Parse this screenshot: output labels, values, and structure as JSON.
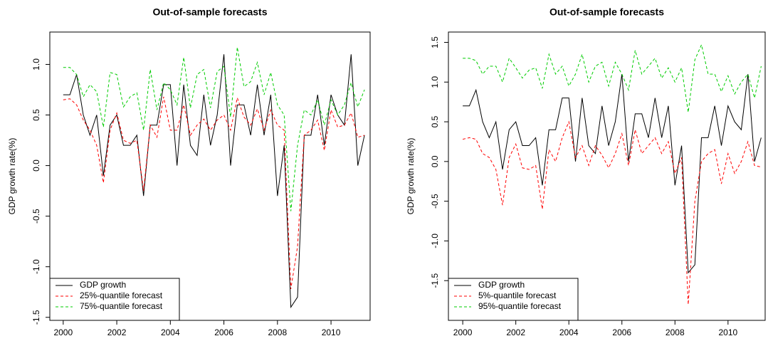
{
  "chart_data": [
    {
      "type": "line",
      "title": "Out-of-sample forecasts",
      "ylabel": "GDP growth rate(%)",
      "x": [
        2000,
        2000.25,
        2000.5,
        2000.75,
        2001,
        2001.25,
        2001.5,
        2001.75,
        2002,
        2002.25,
        2002.5,
        2002.75,
        2003,
        2003.25,
        2003.5,
        2003.75,
        2004,
        2004.25,
        2004.5,
        2004.75,
        2005,
        2005.25,
        2005.5,
        2005.75,
        2006,
        2006.25,
        2006.5,
        2006.75,
        2007,
        2007.25,
        2007.5,
        2007.75,
        2008,
        2008.25,
        2008.5,
        2008.75,
        2009,
        2009.25,
        2009.5,
        2009.75,
        2010,
        2010.25,
        2010.5,
        2010.75,
        2011,
        2011.25
      ],
      "series": [
        {
          "name": "GDP growth",
          "color": "#000000",
          "linestyle": "solid",
          "values": [
            0.7,
            0.7,
            0.9,
            0.5,
            0.3,
            0.5,
            -0.1,
            0.4,
            0.5,
            0.2,
            0.2,
            0.3,
            -0.3,
            0.4,
            0.4,
            0.8,
            0.8,
            0.0,
            0.8,
            0.2,
            0.1,
            0.7,
            0.2,
            0.5,
            1.1,
            0.0,
            0.6,
            0.6,
            0.3,
            0.8,
            0.3,
            0.7,
            -0.3,
            0.2,
            -1.4,
            -1.3,
            0.3,
            0.3,
            0.7,
            0.2,
            0.7,
            0.5,
            0.4,
            1.1,
            0.0,
            0.3
          ]
        },
        {
          "name": "25%-quantile forecast",
          "color": "#ff0000",
          "linestyle": "dashed",
          "values": [
            0.65,
            0.66,
            0.6,
            0.45,
            0.35,
            0.2,
            -0.17,
            0.35,
            0.52,
            0.25,
            0.22,
            0.25,
            -0.25,
            0.4,
            0.28,
            0.68,
            0.35,
            0.35,
            0.6,
            0.3,
            0.4,
            0.46,
            0.35,
            0.45,
            0.5,
            0.35,
            0.67,
            0.48,
            0.4,
            0.56,
            0.35,
            0.55,
            0.4,
            0.35,
            -1.22,
            -0.8,
            0.3,
            0.35,
            0.45,
            0.15,
            0.55,
            0.38,
            0.4,
            0.52,
            0.28,
            0.3
          ]
        },
        {
          "name": "75%-quantile forecast",
          "color": "#00cc00",
          "linestyle": "dashed",
          "values": [
            0.97,
            0.97,
            0.9,
            0.68,
            0.8,
            0.73,
            0.38,
            0.92,
            0.9,
            0.58,
            0.68,
            0.72,
            0.35,
            0.95,
            0.55,
            0.82,
            0.75,
            0.6,
            1.07,
            0.57,
            0.9,
            0.95,
            0.57,
            0.93,
            0.98,
            0.48,
            1.17,
            0.78,
            0.83,
            1.02,
            0.7,
            0.92,
            0.6,
            0.5,
            -0.45,
            0.2,
            0.55,
            0.5,
            0.65,
            0.4,
            0.65,
            0.5,
            0.6,
            0.82,
            0.58,
            0.75
          ]
        }
      ],
      "xlim": [
        1999.5,
        2011.46
      ],
      "xticks": [
        2000,
        2002,
        2004,
        2006,
        2008,
        2010
      ],
      "ylim": [
        -1.53,
        1.32
      ],
      "yticks": [
        {
          "value": -1.5,
          "label": "-1.5"
        },
        {
          "value": -1,
          "label": "-1.0"
        },
        {
          "value": -0.5,
          "label": "-0.5"
        },
        {
          "value": 0,
          "label": "0.0"
        },
        0.5,
        {
          "value": 1,
          "label": "1.0"
        }
      ],
      "legend": "bottom-left",
      "grid": false
    },
    {
      "type": "line",
      "title": "Out-of-sample forecasts",
      "ylabel": "GDP growth rate(%)",
      "x": [
        2000,
        2000.25,
        2000.5,
        2000.75,
        2001,
        2001.25,
        2001.5,
        2001.75,
        2002,
        2002.25,
        2002.5,
        2002.75,
        2003,
        2003.25,
        2003.5,
        2003.75,
        2004,
        2004.25,
        2004.5,
        2004.75,
        2005,
        2005.25,
        2005.5,
        2005.75,
        2006,
        2006.25,
        2006.5,
        2006.75,
        2007,
        2007.25,
        2007.5,
        2007.75,
        2008,
        2008.25,
        2008.5,
        2008.75,
        2009,
        2009.25,
        2009.5,
        2009.75,
        2010,
        2010.25,
        2010.5,
        2010.75,
        2011,
        2011.25
      ],
      "series": [
        {
          "name": "GDP growth",
          "color": "#000000",
          "linestyle": "solid",
          "values": [
            0.7,
            0.7,
            0.9,
            0.5,
            0.3,
            0.5,
            -0.1,
            0.4,
            0.5,
            0.2,
            0.2,
            0.3,
            -0.3,
            0.4,
            0.4,
            0.8,
            0.8,
            0.0,
            0.8,
            0.2,
            0.1,
            0.7,
            0.2,
            0.5,
            1.1,
            0.0,
            0.6,
            0.6,
            0.3,
            0.8,
            0.3,
            0.7,
            -0.3,
            0.2,
            -1.4,
            -1.3,
            0.3,
            0.3,
            0.7,
            0.2,
            0.7,
            0.5,
            0.4,
            1.1,
            0.0,
            0.3
          ]
        },
        {
          "name": "5%-quantile forecast",
          "color": "#ff0000",
          "linestyle": "dashed",
          "values": [
            0.28,
            0.3,
            0.28,
            0.1,
            0.05,
            -0.1,
            -0.55,
            0.05,
            0.22,
            -0.08,
            -0.1,
            -0.05,
            -0.6,
            0.15,
            0.0,
            0.3,
            0.5,
            0.05,
            0.2,
            -0.05,
            0.2,
            0.08,
            -0.08,
            0.1,
            0.35,
            -0.05,
            0.4,
            0.1,
            0.2,
            0.3,
            0.1,
            0.25,
            -0.15,
            0.05,
            -1.8,
            -0.5,
            0.0,
            0.1,
            0.15,
            -0.28,
            0.1,
            -0.15,
            0.0,
            0.25,
            -0.05,
            -0.07
          ]
        },
        {
          "name": "95%-quantile forecast",
          "color": "#00cc00",
          "linestyle": "dashed",
          "values": [
            1.3,
            1.3,
            1.27,
            1.1,
            1.2,
            1.2,
            1.0,
            1.3,
            1.18,
            1.05,
            1.15,
            1.18,
            0.92,
            1.35,
            1.1,
            1.2,
            0.95,
            1.1,
            1.35,
            1.0,
            1.2,
            1.25,
            0.95,
            1.25,
            1.1,
            0.9,
            1.4,
            1.1,
            1.2,
            1.3,
            1.05,
            1.18,
            1.0,
            1.18,
            0.62,
            1.28,
            1.47,
            1.1,
            1.1,
            0.88,
            1.08,
            0.85,
            1.0,
            1.1,
            0.8,
            1.2
          ]
        }
      ],
      "xlim": [
        1999.46,
        2011.4
      ],
      "xticks": [
        2000,
        2002,
        2004,
        2006,
        2008,
        2010
      ],
      "ylim": [
        -2.0,
        1.63
      ],
      "yticks": [
        {
          "value": -1.5,
          "label": "-1.5"
        },
        {
          "value": -1,
          "label": "-1.0"
        },
        {
          "value": -0.5,
          "label": "-0.5"
        },
        {
          "value": 0,
          "label": "0.0"
        },
        0.5,
        {
          "value": 1,
          "label": "1.0"
        },
        1.5
      ],
      "legend": "bottom-left",
      "grid": false
    }
  ]
}
